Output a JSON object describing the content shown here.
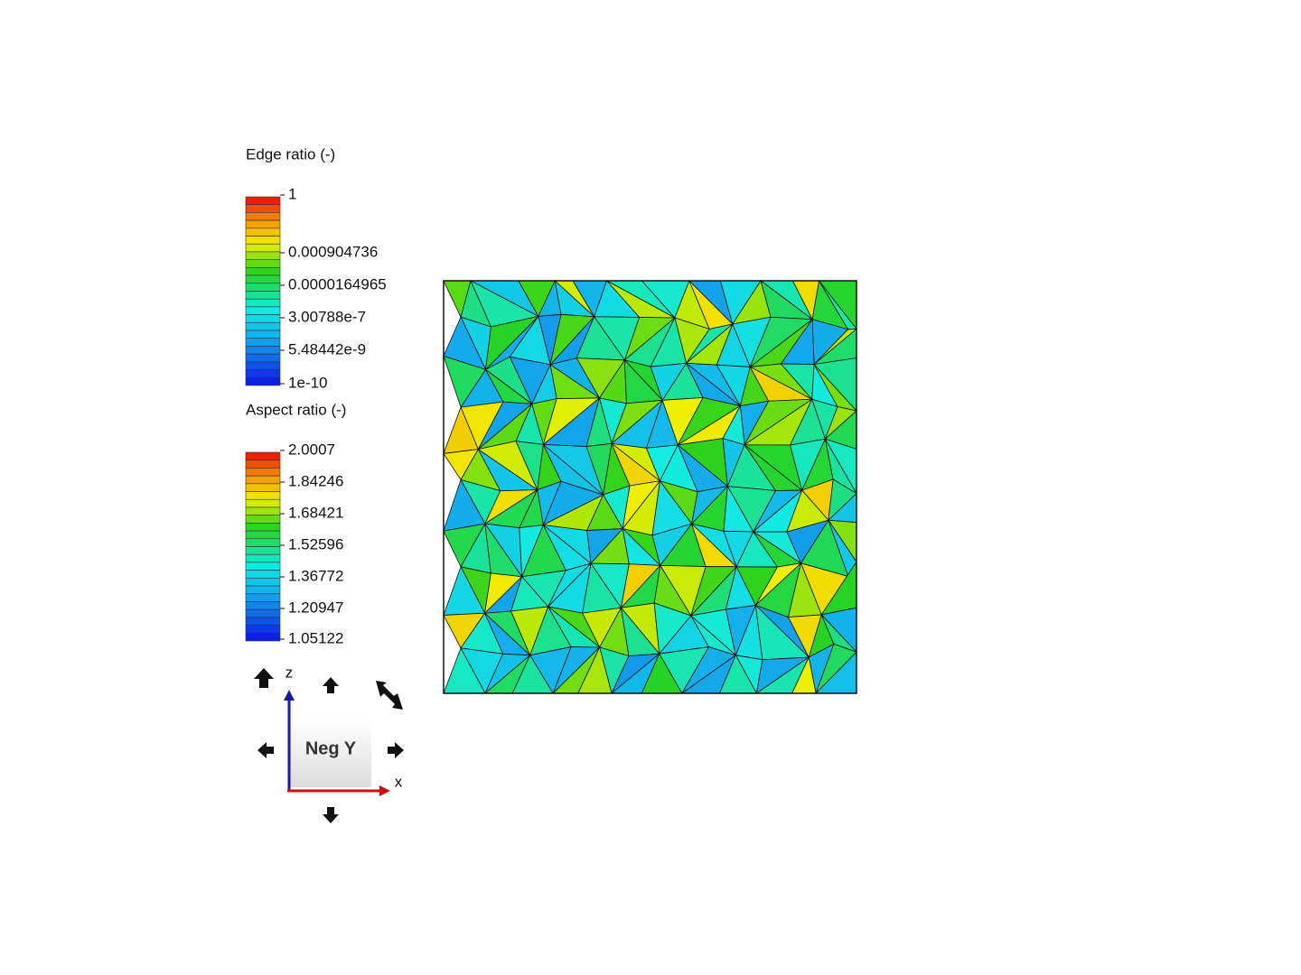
{
  "legends": [
    {
      "title": "Edge ratio (-)",
      "labels": [
        "1",
        "0.000904736",
        "0.0000164965",
        "3.00788e-7",
        "5.48442e-9",
        "1e-10"
      ]
    },
    {
      "title": "Aspect ratio (-)",
      "labels": [
        "2.0007",
        "1.84246",
        "1.68421",
        "1.52596",
        "1.36772",
        "1.20947",
        "1.05122"
      ]
    }
  ],
  "view_cube": {
    "face": "Neg Y",
    "z_axis": "z",
    "x_axis": "x"
  }
}
